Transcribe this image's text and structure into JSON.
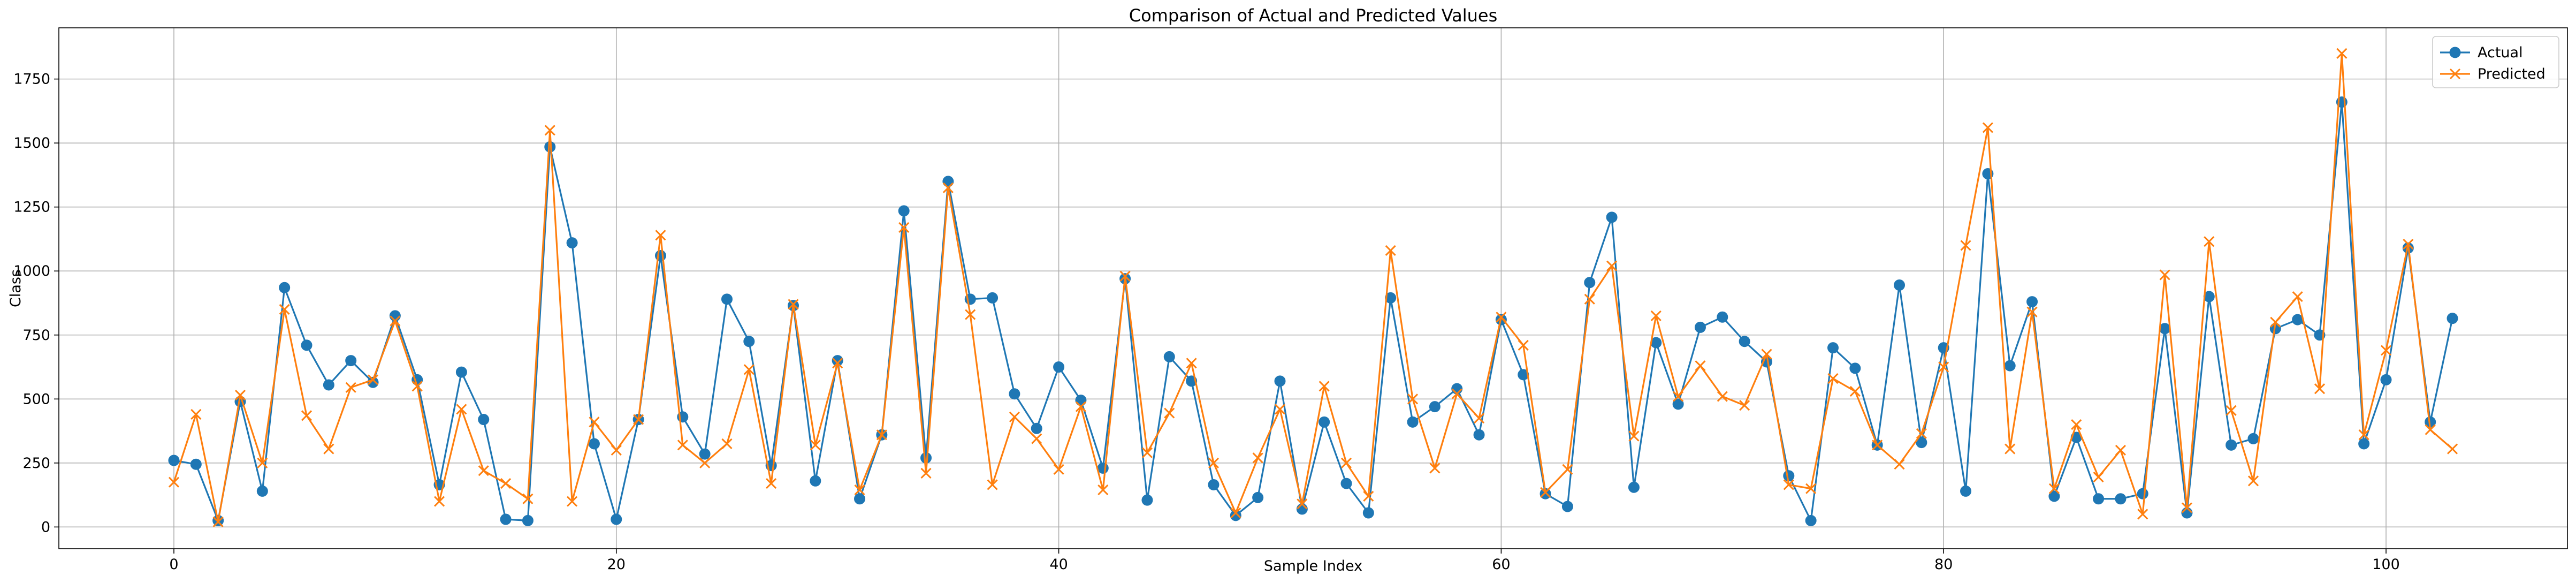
{
  "chart_data": {
    "type": "line",
    "title": "Comparison of Actual and Predicted Values",
    "xlabel": "Sample Index",
    "ylabel": "Class",
    "xlim": [
      -5.2,
      108.2
    ],
    "ylim": [
      -85,
      1950
    ],
    "x_ticks": [
      0,
      20,
      40,
      60,
      80,
      100
    ],
    "y_ticks": [
      0,
      250,
      500,
      750,
      1000,
      1250,
      1500,
      1750
    ],
    "grid": true,
    "legend_position": "top-right",
    "x": [
      0,
      1,
      2,
      3,
      4,
      5,
      6,
      7,
      8,
      9,
      10,
      11,
      12,
      13,
      14,
      15,
      16,
      17,
      18,
      19,
      20,
      21,
      22,
      23,
      24,
      25,
      26,
      27,
      28,
      29,
      30,
      31,
      32,
      33,
      34,
      35,
      36,
      37,
      38,
      39,
      40,
      41,
      42,
      43,
      44,
      45,
      46,
      47,
      48,
      49,
      50,
      51,
      52,
      53,
      54,
      55,
      56,
      57,
      58,
      59,
      60,
      61,
      62,
      63,
      64,
      65,
      66,
      67,
      68,
      69,
      70,
      71,
      72,
      73,
      74,
      75,
      76,
      77,
      78,
      79,
      80,
      81,
      82,
      83,
      84,
      85,
      86,
      87,
      88,
      89,
      90,
      91,
      92,
      93,
      94,
      95,
      96,
      97,
      98,
      99,
      100,
      101,
      102,
      103
    ],
    "series": [
      {
        "name": "Actual",
        "color": "#1f77b4",
        "marker": "circle",
        "values": [
          260,
          245,
          25,
          490,
          140,
          935,
          710,
          555,
          650,
          565,
          825,
          575,
          165,
          605,
          420,
          30,
          25,
          1485,
          1110,
          325,
          30,
          420,
          1060,
          430,
          285,
          890,
          725,
          240,
          865,
          180,
          650,
          110,
          360,
          1235,
          270,
          1350,
          890,
          895,
          520,
          385,
          625,
          495,
          230,
          970,
          105,
          665,
          570,
          165,
          45,
          115,
          570,
          70,
          410,
          170,
          55,
          895,
          410,
          470,
          540,
          360,
          810,
          595,
          130,
          80,
          955,
          1210,
          155,
          720,
          480,
          780,
          820,
          725,
          645,
          200,
          25,
          700,
          620,
          320,
          945,
          330,
          700,
          140,
          1380,
          630,
          880,
          120,
          350,
          110,
          110,
          130,
          775,
          55,
          900,
          320,
          345,
          775,
          810,
          750,
          1660,
          325,
          575,
          1090,
          410,
          815
        ]
      },
      {
        "name": "Predicted",
        "color": "#ff7f0e",
        "marker": "x",
        "values": [
          175,
          440,
          20,
          515,
          250,
          850,
          435,
          305,
          545,
          575,
          805,
          550,
          100,
          460,
          220,
          170,
          110,
          1550,
          100,
          410,
          300,
          420,
          1140,
          320,
          250,
          325,
          615,
          170,
          870,
          320,
          640,
          145,
          360,
          1170,
          210,
          1325,
          830,
          165,
          430,
          345,
          225,
          470,
          145,
          980,
          290,
          445,
          640,
          250,
          55,
          270,
          460,
          90,
          550,
          250,
          120,
          1080,
          500,
          230,
          520,
          425,
          820,
          710,
          135,
          225,
          890,
          1020,
          355,
          825,
          510,
          630,
          510,
          475,
          675,
          165,
          150,
          580,
          530,
          320,
          245,
          365,
          625,
          1100,
          1560,
          305,
          840,
          150,
          400,
          195,
          300,
          50,
          985,
          75,
          1115,
          455,
          180,
          800,
          900,
          540,
          1850,
          360,
          690,
          1105,
          380,
          305
        ]
      }
    ]
  }
}
